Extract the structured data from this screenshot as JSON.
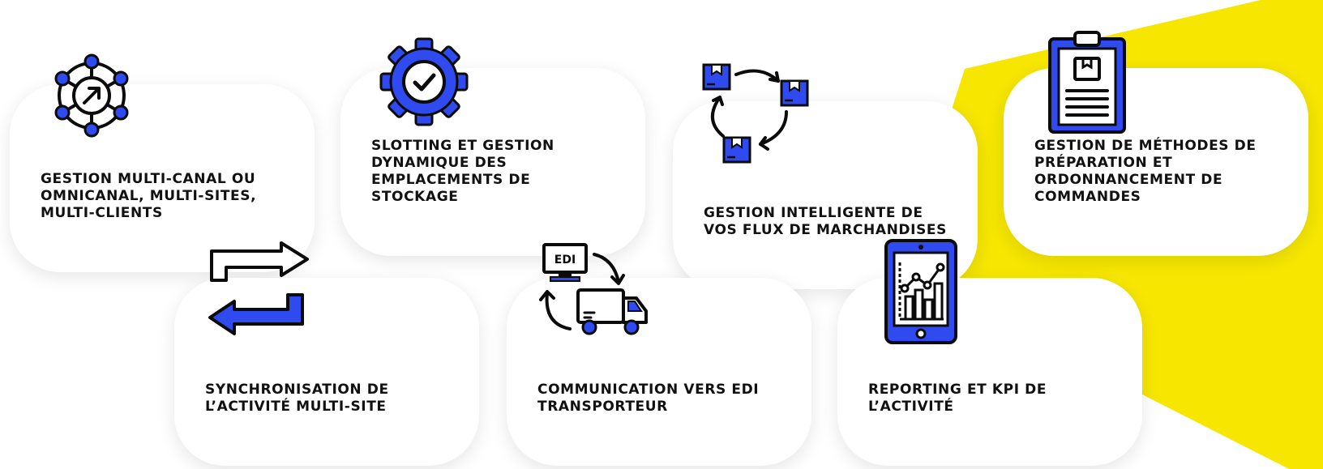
{
  "colors": {
    "accent_blue": "#2f4bf0",
    "accent_yellow": "#f6e600",
    "outline": "#0b0b0b",
    "card_bg": "#ffffff",
    "text": "#111111"
  },
  "features": [
    {
      "icon": "network-arrow-icon",
      "label": "GESTION MULTI-CANAL OU\nOMNICANAL, MULTI-SITES,\nMULTI-CLIENTS"
    },
    {
      "icon": "gear-check-icon",
      "label": "SLOTTING ET GESTION\nDYNAMIQUE DES\nEMPLACEMENTS DE\nSTOCKAGE"
    },
    {
      "icon": "boxes-cycle-icon",
      "label": "GESTION INTELLIGENTE DE\nVOS FLUX DE MARCHANDISES"
    },
    {
      "icon": "clipboard-icon",
      "label": "GESTION DE MÉTHODES DE\nPRÉPARATION ET\nORDONNANCEMENT DE\nCOMMANDES"
    },
    {
      "icon": "sync-arrows-icon",
      "label": "SYNCHRONISATION DE\nL’ACTIVITÉ MULTI-SITE"
    },
    {
      "icon": "edi-truck-icon",
      "label": "COMMUNICATION VERS EDI\nTRANSPORTEUR",
      "edi_text": "EDI"
    },
    {
      "icon": "tablet-chart-icon",
      "label": "REPORTING ET KPI DE\nL’ACTIVITÉ"
    }
  ]
}
